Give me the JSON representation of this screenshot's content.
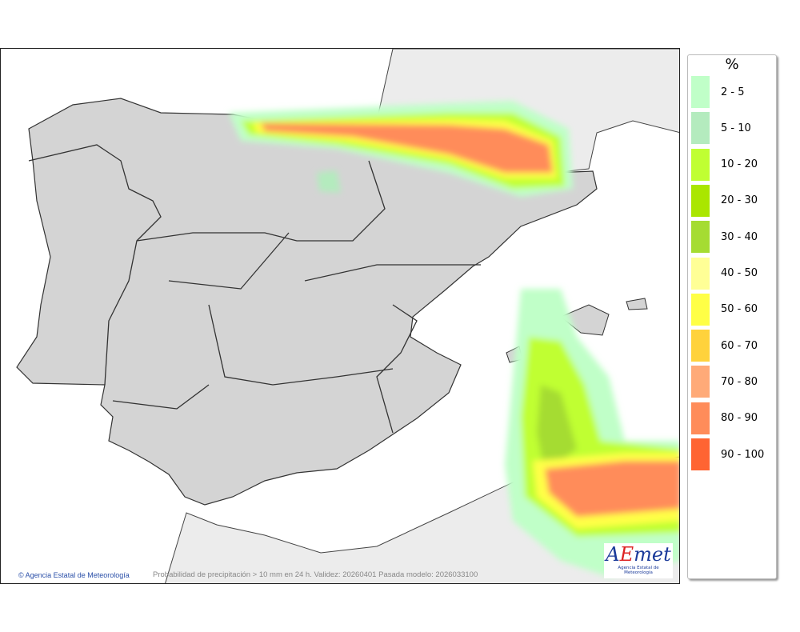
{
  "map": {
    "caption": "Probabilidad de precipitación > 10 mm en 24 h. Validez: 20260401 Pasada modelo: 2026033100",
    "credit": "Agencia Estatal de Meteorología",
    "credit_icon": "copyright-icon",
    "logo": {
      "text": "AEmet",
      "subtitle": "Agencia Estatal de Meteorología"
    }
  },
  "legend": {
    "unit": "%",
    "items": [
      {
        "label": "2 - 5",
        "color": "#c0ffc8"
      },
      {
        "label": "5 - 10",
        "color": "#b4ebbe"
      },
      {
        "label": "10 - 20",
        "color": "#c0ff32"
      },
      {
        "label": "20 - 30",
        "color": "#aae600"
      },
      {
        "label": "30 - 40",
        "color": "#a5dc32"
      },
      {
        "label": "40 - 50",
        "color": "#ffff96"
      },
      {
        "label": "50 - 60",
        "color": "#ffff46"
      },
      {
        "label": "60 - 70",
        "color": "#ffd23c"
      },
      {
        "label": "70 - 80",
        "color": "#ffaa78"
      },
      {
        "label": "80 - 90",
        "color": "#ff8c5a"
      },
      {
        "label": "90 - 100",
        "color": "#ff6432"
      }
    ]
  }
}
